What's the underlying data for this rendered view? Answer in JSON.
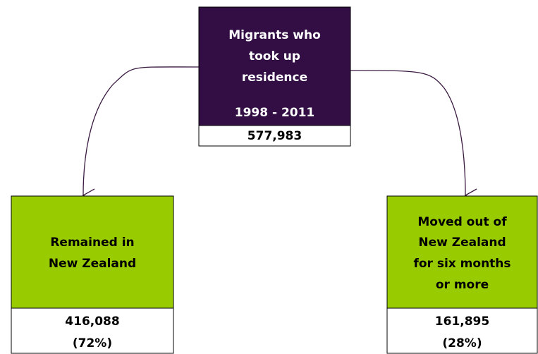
{
  "nodes": [
    {
      "label": [
        "Migrants who",
        "took up",
        "residence"
      ],
      "period": "1998 - 2011",
      "value": "577,983"
    },
    {
      "label": [
        "Remained in",
        "New Zealand"
      ],
      "value": "416,088",
      "percent": "(72%)"
    },
    {
      "label": [
        "Moved out of",
        "New Zealand",
        "for six months",
        "or more"
      ],
      "value": "161,895",
      "percent": "(28%)"
    }
  ]
}
